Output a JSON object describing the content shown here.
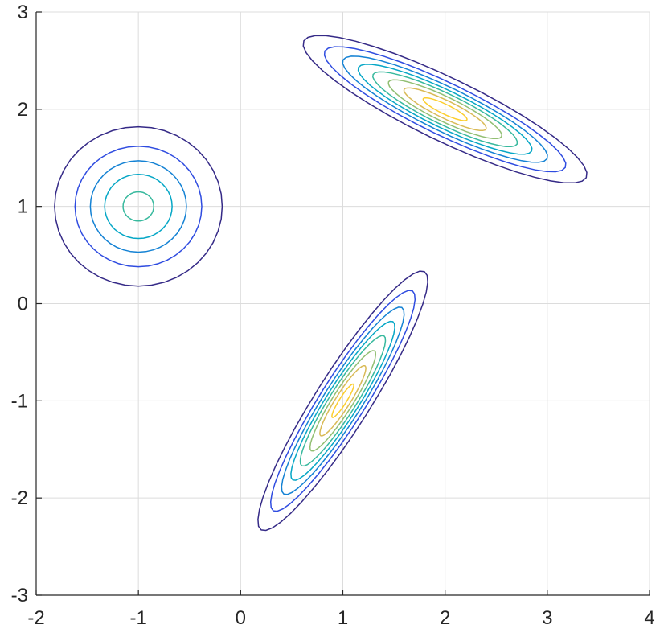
{
  "chart_data": {
    "type": "contour",
    "title": "",
    "xlabel": "",
    "ylabel": "",
    "xlim": [
      -2,
      4
    ],
    "ylim": [
      -3,
      3
    ],
    "grid": true,
    "x_ticks": [
      "-2",
      "-1",
      "0",
      "1",
      "2",
      "3",
      "4"
    ],
    "y_ticks": [
      "-3",
      "-2",
      "-1",
      "0",
      "1",
      "2",
      "3"
    ],
    "colormap": [
      "#352a87",
      "#2f4ce0",
      "#1482d4",
      "#06a7c6",
      "#38b99e",
      "#92bf73",
      "#d9ba56",
      "#fcce2e",
      "#f9fb0e"
    ],
    "components": [
      {
        "mean": [
          -1,
          1
        ],
        "rotation_deg": 0,
        "contours": [
          {
            "level": 1,
            "semi_major": 0.82,
            "semi_minor": 0.82
          },
          {
            "level": 2,
            "semi_major": 0.62,
            "semi_minor": 0.62
          },
          {
            "level": 3,
            "semi_major": 0.47,
            "semi_minor": 0.47
          },
          {
            "level": 4,
            "semi_major": 0.33,
            "semi_minor": 0.33
          },
          {
            "level": 5,
            "semi_major": 0.15,
            "semi_minor": 0.15
          }
        ]
      },
      {
        "mean": [
          2,
          2
        ],
        "rotation_deg": -27,
        "contours": [
          {
            "level": 1,
            "semi_major": 1.55,
            "semi_minor": 0.32
          },
          {
            "level": 2,
            "semi_major": 1.32,
            "semi_minor": 0.265
          },
          {
            "level": 3,
            "semi_major": 1.12,
            "semi_minor": 0.225
          },
          {
            "level": 4,
            "semi_major": 0.95,
            "semi_minor": 0.19
          },
          {
            "level": 5,
            "semi_major": 0.79,
            "semi_minor": 0.158
          },
          {
            "level": 6,
            "semi_major": 0.62,
            "semi_minor": 0.125
          },
          {
            "level": 7,
            "semi_major": 0.45,
            "semi_minor": 0.09
          },
          {
            "level": 8,
            "semi_major": 0.24,
            "semi_minor": 0.05
          }
        ]
      },
      {
        "mean": [
          1,
          -1
        ],
        "rotation_deg": 59,
        "contours": [
          {
            "level": 1,
            "semi_major": 1.55,
            "semi_minor": 0.27
          },
          {
            "level": 2,
            "semi_major": 1.32,
            "semi_minor": 0.225
          },
          {
            "level": 3,
            "semi_major": 1.12,
            "semi_minor": 0.19
          },
          {
            "level": 4,
            "semi_major": 0.95,
            "semi_minor": 0.16
          },
          {
            "level": 5,
            "semi_major": 0.78,
            "semi_minor": 0.132
          },
          {
            "level": 6,
            "semi_major": 0.6,
            "semi_minor": 0.102
          },
          {
            "level": 7,
            "semi_major": 0.42,
            "semi_minor": 0.072
          },
          {
            "level": 8,
            "semi_major": 0.2,
            "semi_minor": 0.035
          }
        ]
      }
    ]
  }
}
